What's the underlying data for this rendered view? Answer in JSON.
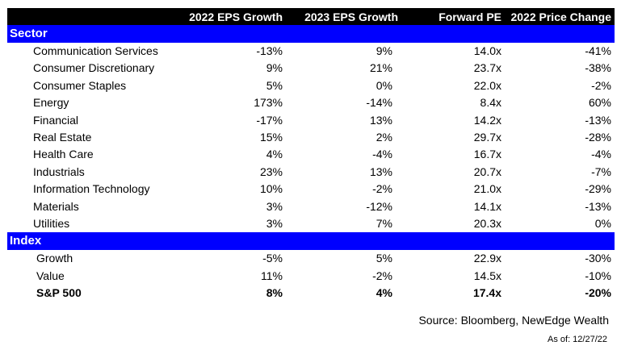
{
  "chart_data": {
    "type": "table",
    "columns": [
      "2022 EPS Growth",
      "2023 EPS Growth",
      "Forward PE",
      "2022 Price Change"
    ],
    "groups": [
      {
        "label": "Sector",
        "rows": [
          {
            "name": "Communication Services",
            "values": [
              "-13%",
              "9%",
              "14.0x",
              "-41%"
            ]
          },
          {
            "name": "Consumer Discretionary",
            "values": [
              "9%",
              "21%",
              "23.7x",
              "-38%"
            ]
          },
          {
            "name": "Consumer Staples",
            "values": [
              "5%",
              "0%",
              "22.0x",
              "-2%"
            ]
          },
          {
            "name": "Energy",
            "values": [
              "173%",
              "-14%",
              "8.4x",
              "60%"
            ]
          },
          {
            "name": "Financial",
            "values": [
              "-17%",
              "13%",
              "14.2x",
              "-13%"
            ]
          },
          {
            "name": "Real Estate",
            "values": [
              "15%",
              "2%",
              "29.7x",
              "-28%"
            ]
          },
          {
            "name": "Health Care",
            "values": [
              "4%",
              "-4%",
              "16.7x",
              "-4%"
            ]
          },
          {
            "name": "Industrials",
            "values": [
              "23%",
              "13%",
              "20.7x",
              "-7%"
            ]
          },
          {
            "name": "Information Technology",
            "values": [
              "10%",
              "-2%",
              "21.0x",
              "-29%"
            ]
          },
          {
            "name": "Materials",
            "values": [
              "3%",
              "-12%",
              "14.1x",
              "-13%"
            ]
          },
          {
            "name": "Utilities",
            "values": [
              "3%",
              "7%",
              "20.3x",
              "0%"
            ]
          }
        ]
      },
      {
        "label": "Index",
        "rows": [
          {
            "name": "Growth",
            "values": [
              "-5%",
              "5%",
              "22.9x",
              "-30%"
            ]
          },
          {
            "name": "Value",
            "values": [
              "11%",
              "-2%",
              "14.5x",
              "-10%"
            ]
          },
          {
            "name": "S&P 500",
            "values": [
              "8%",
              "4%",
              "17.4x",
              "-20%"
            ],
            "bold": true
          }
        ]
      }
    ],
    "source": "Source: Bloomberg, NewEdge Wealth",
    "as_of": "As of: 12/27/22",
    "colors": {
      "header_bg": "#000000",
      "group_bg": "#0000ff",
      "group_text": "#ffffff"
    }
  }
}
